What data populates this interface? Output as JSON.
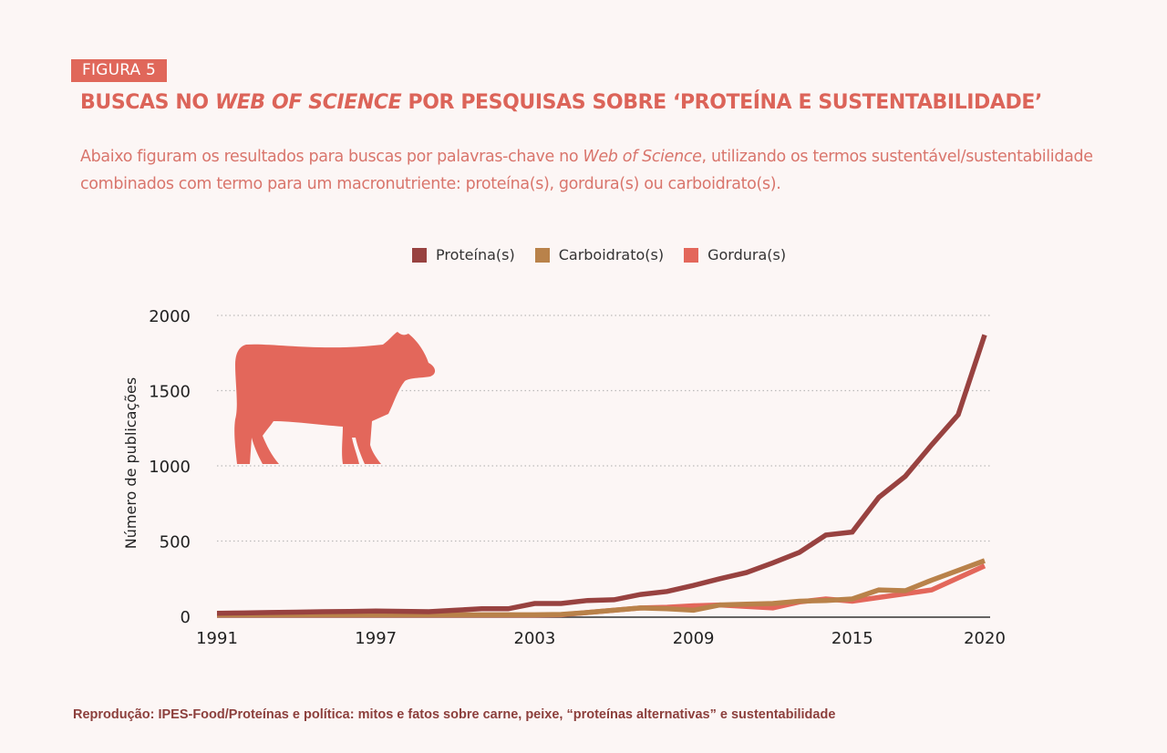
{
  "figure_label": "FIGURA 5",
  "title": {
    "part1": "BUSCAS NO ",
    "part2_italic": "WEB OF SCIENCE",
    "part3": " POR PESQUISAS SOBRE ‘PROTEÍNA E SUSTENTABILIDADE’"
  },
  "description": {
    "part1": "Abaixo figuram os resultados para buscas por palavras-chave no ",
    "part2_italic": "Web of Science",
    "part3": ", utilizando os termos sustentável/sustentabilidade combinados com termo para um macronutriente: proteína(s), gordura(s) ou carboidrato(s)."
  },
  "footer": "Reprodução: IPES-Food/Proteínas e política: mitos e fatos sobre carne, peixe, “proteínas alternativas” e sustentabilidade",
  "illustration": "cow-silhouette-icon",
  "colors": {
    "protein": "#984240",
    "carb": "#b9824a",
    "fat": "#e3675b",
    "cow": "#e3675b",
    "accent": "#e0675a"
  },
  "chart_data": {
    "type": "line",
    "title": "",
    "xlabel": "",
    "ylabel": "Número de publicações",
    "xlim": [
      1991,
      2020
    ],
    "ylim": [
      0,
      2000
    ],
    "yticks": [
      0,
      500,
      1000,
      1500,
      2000
    ],
    "xticks": [
      1991,
      1997,
      2003,
      2009,
      2015,
      2020
    ],
    "grid": "horizontal dotted",
    "legend_position": "top-center",
    "x": [
      1991,
      1992,
      1993,
      1994,
      1995,
      1996,
      1997,
      1998,
      1999,
      2000,
      2001,
      2002,
      2003,
      2004,
      2005,
      2006,
      2007,
      2008,
      2009,
      2010,
      2011,
      2012,
      2013,
      2014,
      2015,
      2016,
      2017,
      2018,
      2019,
      2020
    ],
    "series": [
      {
        "name": "Proteína(s)",
        "key": "protein",
        "values": [
          20,
          22,
          25,
          27,
          30,
          32,
          35,
          33,
          30,
          40,
          50,
          50,
          85,
          85,
          105,
          110,
          145,
          165,
          205,
          250,
          290,
          355,
          425,
          540,
          560,
          790,
          930,
          1140,
          1340,
          1870
        ]
      },
      {
        "name": "Carboidrato(s)",
        "key": "carb",
        "values": [
          10,
          10,
          10,
          10,
          10,
          10,
          10,
          10,
          10,
          10,
          10,
          10,
          10,
          12,
          25,
          40,
          55,
          50,
          40,
          75,
          80,
          85,
          100,
          105,
          115,
          175,
          170,
          240,
          305,
          370
        ]
      },
      {
        "name": "Gordura(s)",
        "key": "fat",
        "values": [
          8,
          8,
          8,
          8,
          8,
          8,
          8,
          8,
          8,
          8,
          8,
          8,
          8,
          10,
          25,
          40,
          55,
          60,
          70,
          75,
          65,
          55,
          95,
          115,
          100,
          125,
          150,
          175,
          255,
          335
        ]
      }
    ]
  }
}
